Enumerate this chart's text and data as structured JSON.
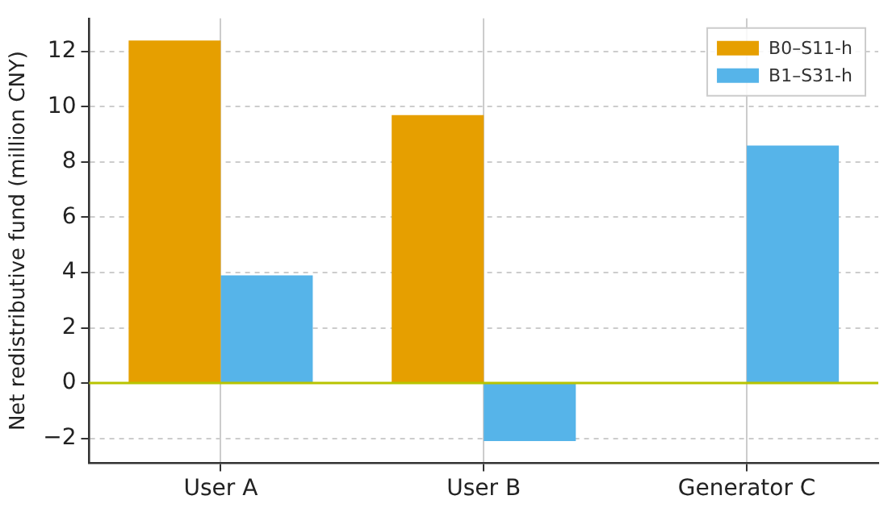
{
  "chart_data": {
    "type": "bar",
    "ylabel": "Net redistributive fund (million CNY)",
    "categories": [
      "User A",
      "User B",
      "Generator C"
    ],
    "series": [
      {
        "name": "B0–S11-h",
        "color": "#e69f00",
        "values": [
          12.4,
          9.7,
          0
        ]
      },
      {
        "name": "B1–S31-h",
        "color": "#56b4e9",
        "values": [
          3.9,
          -2.1,
          8.6
        ]
      }
    ],
    "ylim": [
      -2.9,
      13.2
    ],
    "yticks": [
      -2,
      0,
      2,
      4,
      6,
      8,
      10,
      12
    ],
    "grid": true,
    "legend": "top right",
    "ref_lines": [
      {
        "axis": "y",
        "value": 0,
        "color": "#b8c400"
      }
    ]
  }
}
